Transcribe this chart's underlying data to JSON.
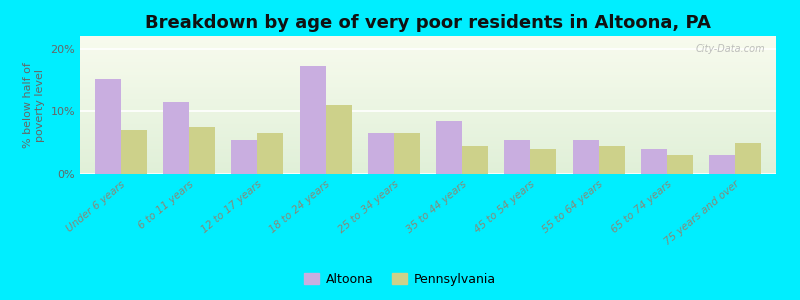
{
  "categories": [
    "Under 6 years",
    "6 to 11 years",
    "12 to 17 years",
    "18 to 24 years",
    "25 to 34 years",
    "35 to 44 years",
    "45 to 54 years",
    "55 to 64 years",
    "65 to 74 years",
    "75 years and over"
  ],
  "altoona_values": [
    15.2,
    11.5,
    5.5,
    17.2,
    6.5,
    8.5,
    5.5,
    5.5,
    4.0,
    3.0
  ],
  "pennsylvania_values": [
    7.0,
    7.5,
    6.5,
    11.0,
    6.5,
    4.5,
    4.0,
    4.5,
    3.0,
    5.0
  ],
  "altoona_color": "#c9aee0",
  "pennsylvania_color": "#cdd18a",
  "background_outer": "#00eeff",
  "title": "Breakdown by age of very poor residents in Altoona, PA",
  "ylabel": "% below half of\npoverty level",
  "ylim": [
    0,
    22
  ],
  "yticks": [
    0,
    10,
    20
  ],
  "ytick_labels": [
    "0%",
    "10%",
    "20%"
  ],
  "legend_labels": [
    "Altoona",
    "Pennsylvania"
  ],
  "title_fontsize": 13,
  "xtick_fontsize": 7.5,
  "ytick_fontsize": 8,
  "ylabel_fontsize": 8,
  "watermark": "City-Data.com"
}
